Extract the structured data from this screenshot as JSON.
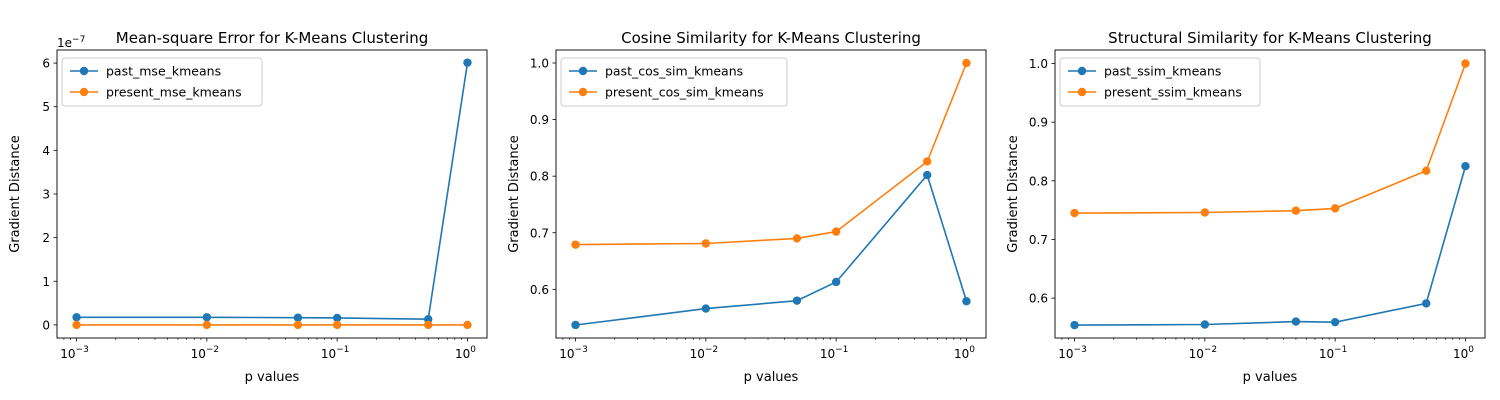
{
  "figure": {
    "background": "#ffffff"
  },
  "chart_data": [
    {
      "type": "line",
      "title": "Mean-square Error for K-Means Clustering",
      "xlabel": "p values",
      "ylabel": "Gradient Distance",
      "x_scale": "log",
      "x": [
        0.001,
        0.01,
        0.05,
        0.1,
        0.5,
        1.0
      ],
      "x_ticks": [
        0.001,
        0.01,
        0.1,
        1.0
      ],
      "x_tick_labels": [
        [
          "10",
          "−3"
        ],
        [
          "10",
          "−2"
        ],
        [
          "10",
          "−1"
        ],
        [
          "10",
          "0"
        ]
      ],
      "ylim": [
        -3e-08,
        6.3e-07
      ],
      "y_ticks": [
        0,
        1e-07,
        2e-07,
        3e-07,
        4e-07,
        5e-07,
        6e-07
      ],
      "y_tick_labels": [
        "0",
        "1",
        "2",
        "3",
        "4",
        "5",
        "6"
      ],
      "y_offset_label": [
        "1e",
        "−7"
      ],
      "legend_position": "upper-left",
      "grid": false,
      "series": [
        {
          "name": "past_mse_kmeans",
          "color": "#1f77b4",
          "values": [
            1.75e-08,
            1.75e-08,
            1.65e-08,
            1.6e-08,
            1.3e-08,
            6.01e-07
          ]
        },
        {
          "name": "present_mse_kmeans",
          "color": "#ff7f0e",
          "values": [
            0,
            0,
            0,
            0,
            0,
            0
          ]
        }
      ]
    },
    {
      "type": "line",
      "title": "Cosine Similarity for K-Means Clustering",
      "xlabel": "p values",
      "ylabel": "Gradient Distance",
      "x_scale": "log",
      "x": [
        0.001,
        0.01,
        0.05,
        0.1,
        0.5,
        1.0
      ],
      "x_ticks": [
        0.001,
        0.01,
        0.1,
        1.0
      ],
      "x_tick_labels": [
        [
          "10",
          "−3"
        ],
        [
          "10",
          "−2"
        ],
        [
          "10",
          "−1"
        ],
        [
          "10",
          "0"
        ]
      ],
      "ylim": [
        0.514,
        1.023
      ],
      "y_ticks": [
        0.6,
        0.7,
        0.8,
        0.9,
        1.0
      ],
      "y_tick_labels": [
        "0.6",
        "0.7",
        "0.8",
        "0.9",
        "1.0"
      ],
      "legend_position": "upper-left",
      "grid": false,
      "series": [
        {
          "name": "past_cos_sim_kmeans",
          "color": "#1f77b4",
          "values": [
            0.537,
            0.566,
            0.58,
            0.613,
            0.802,
            0.579
          ]
        },
        {
          "name": "present_cos_sim_kmeans",
          "color": "#ff7f0e",
          "values": [
            0.679,
            0.681,
            0.69,
            0.702,
            0.826,
            1.0
          ]
        }
      ]
    },
    {
      "type": "line",
      "title": "Structural Similarity for K-Means Clustering",
      "xlabel": "p values",
      "ylabel": "Gradient Distance",
      "x_scale": "log",
      "x": [
        0.001,
        0.01,
        0.05,
        0.1,
        0.5,
        1.0
      ],
      "x_ticks": [
        0.001,
        0.01,
        0.1,
        1.0
      ],
      "x_tick_labels": [
        [
          "10",
          "−3"
        ],
        [
          "10",
          "−2"
        ],
        [
          "10",
          "−1"
        ],
        [
          "10",
          "0"
        ]
      ],
      "ylim": [
        0.532,
        1.023
      ],
      "y_ticks": [
        0.6,
        0.7,
        0.8,
        0.9,
        1.0
      ],
      "y_tick_labels": [
        "0.6",
        "0.7",
        "0.8",
        "0.9",
        "1.0"
      ],
      "legend_position": "upper-left",
      "grid": false,
      "series": [
        {
          "name": "past_ssim_kmeans",
          "color": "#1f77b4",
          "values": [
            0.554,
            0.555,
            0.56,
            0.559,
            0.591,
            0.825
          ]
        },
        {
          "name": "present_ssim_kmeans",
          "color": "#ff7f0e",
          "values": [
            0.745,
            0.746,
            0.749,
            0.753,
            0.817,
            1.0
          ]
        }
      ]
    }
  ]
}
